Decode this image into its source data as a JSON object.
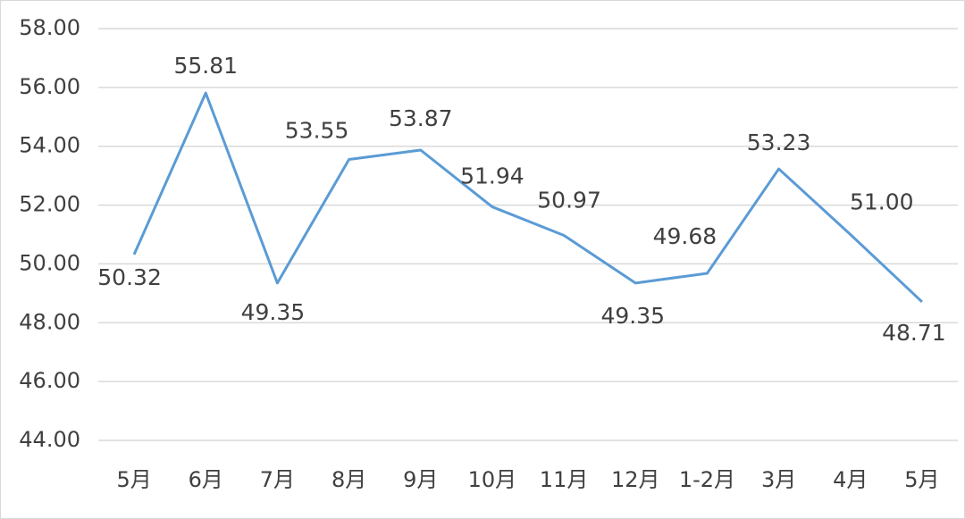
{
  "chart_data": {
    "type": "line",
    "categories": [
      "5月",
      "6月",
      "7月",
      "8月",
      "9月",
      "10月",
      "11月",
      "12月",
      "1-2月",
      "3月",
      "4月",
      "5月"
    ],
    "series": [
      {
        "color": "#5b9bd5",
        "values": [
          50.32,
          55.81,
          49.35,
          53.55,
          53.87,
          51.94,
          50.97,
          49.35,
          49.68,
          53.23,
          51.0,
          48.71
        ],
        "value_labels": [
          "50.32",
          "55.81",
          "49.35",
          "53.55",
          "53.87",
          "51.94",
          "50.97",
          "49.35",
          "49.68",
          "53.23",
          "51.00",
          "48.71"
        ]
      }
    ],
    "ylim": [
      44,
      58
    ],
    "yticks": [
      {
        "value": 44,
        "label": "44.00"
      },
      {
        "value": 46,
        "label": "46.00"
      },
      {
        "value": 48,
        "label": "48.00"
      },
      {
        "value": 50,
        "label": "50.00"
      },
      {
        "value": 52,
        "label": "52.00"
      },
      {
        "value": 54,
        "label": "54.00"
      },
      {
        "value": 56,
        "label": "56.00"
      },
      {
        "value": 58,
        "label": "58.00"
      }
    ],
    "grid": true
  }
}
